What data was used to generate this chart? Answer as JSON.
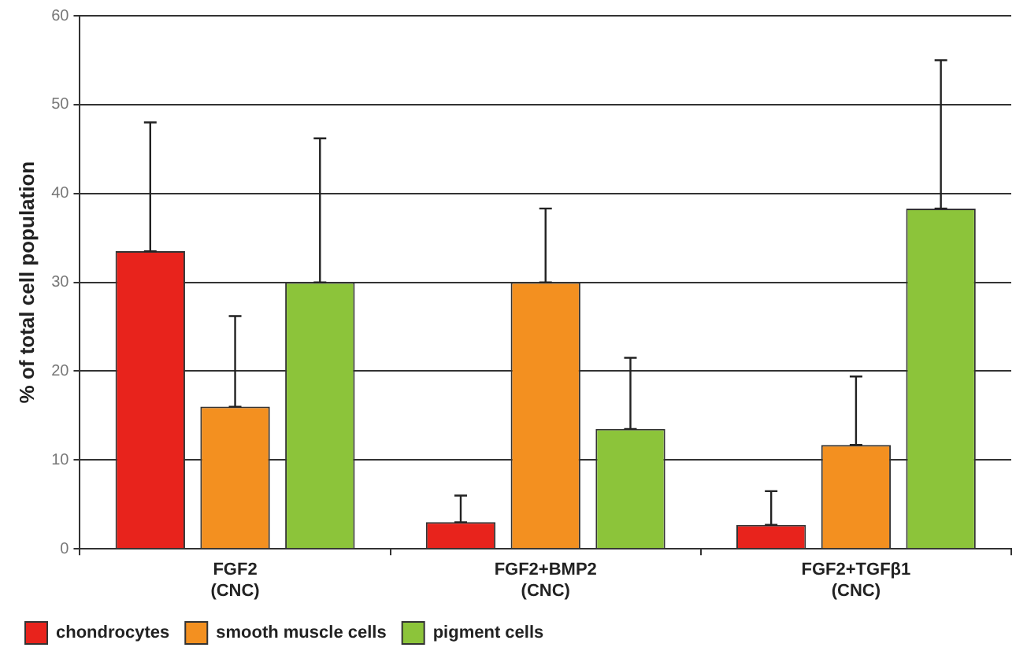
{
  "chart_data": {
    "type": "bar",
    "ylabel": "% of total cell population",
    "categories": [
      "FGF2\n(CNC)",
      "FGF2+BMP2\n(CNC)",
      "FGF2+TGFβ1\n(CNC)"
    ],
    "series": [
      {
        "name": "chondrocytes",
        "color": "#e8231c",
        "values": [
          33.5,
          3,
          2.7
        ],
        "errors": [
          [
            33.5,
            48
          ],
          [
            3,
            6
          ],
          [
            2.7,
            6.5
          ]
        ]
      },
      {
        "name": "smooth muscle cells",
        "color": "#f39020",
        "values": [
          16,
          30,
          11.7
        ],
        "errors": [
          [
            16,
            26.2
          ],
          [
            30,
            38.3
          ],
          [
            11.7,
            19.4
          ]
        ]
      },
      {
        "name": "pigment cells",
        "color": "#8cc43a",
        "values": [
          30,
          13.5,
          38.3
        ],
        "errors": [
          [
            30,
            46.2
          ],
          [
            13.5,
            21.5
          ],
          [
            38.3,
            55
          ]
        ]
      }
    ],
    "ylim": [
      0,
      60
    ],
    "yticks": [
      0,
      10,
      20,
      30,
      40,
      50,
      60
    ],
    "grid": "y",
    "legend": "bottom left"
  }
}
